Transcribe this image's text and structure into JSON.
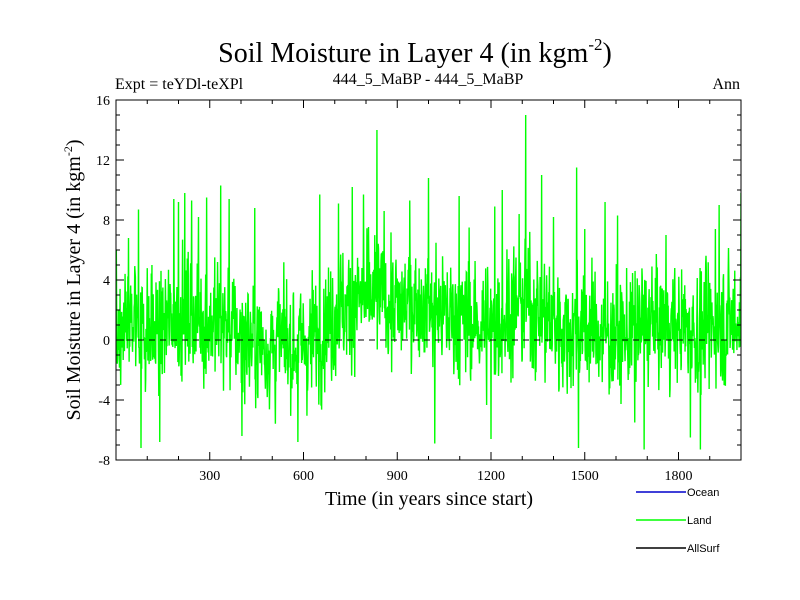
{
  "chart_data": {
    "type": "line",
    "title": "Soil Moisture in Layer 4 (in kgm",
    "title_sup": "-2",
    "title_close": ")",
    "subtitle_left": "Expt = teYDl-teXPl",
    "subtitle_center": "444_5_MaBP - 444_5_MaBP",
    "subtitle_right": "Ann",
    "xlabel": "Time (in years since start)",
    "ylabel": "Soil Moisture in Layer 4 (in kgm",
    "ylabel_sup": "-2",
    "ylabel_close": ")",
    "xlim": [
      0,
      2000
    ],
    "ylim": [
      -8,
      16
    ],
    "x_ticks": [
      300,
      600,
      900,
      1200,
      1500,
      1800
    ],
    "x_tick_labels": [
      "300",
      "600",
      "900",
      "1200",
      "1500",
      "1800"
    ],
    "y_ticks": [
      -8,
      -4,
      0,
      4,
      8,
      12,
      16
    ],
    "y_tick_labels": [
      "-8",
      "-4",
      "0",
      "4",
      "8",
      "12",
      "16"
    ],
    "zero_line": 0,
    "series": [
      {
        "name": "Land",
        "color": "#00ff00",
        "x_start": 1,
        "x_step": 1,
        "n_points": 2000,
        "note": "annual values, approx. range -7.4 to 15",
        "anchors": [
          [
            0,
            0.5
          ],
          [
            60,
            1.5
          ],
          [
            120,
            0.2
          ],
          [
            180,
            1.5
          ],
          [
            240,
            1.8
          ],
          [
            300,
            1.2
          ],
          [
            360,
            0.8
          ],
          [
            420,
            0.2
          ],
          [
            480,
            -0.5
          ],
          [
            540,
            -0.2
          ],
          [
            600,
            -0.5
          ],
          [
            660,
            0.8
          ],
          [
            720,
            2.0
          ],
          [
            780,
            2.6
          ],
          [
            840,
            2.8
          ],
          [
            900,
            2.0
          ],
          [
            960,
            2.6
          ],
          [
            1020,
            2.0
          ],
          [
            1080,
            1.6
          ],
          [
            1140,
            1.2
          ],
          [
            1200,
            0.8
          ],
          [
            1260,
            2.0
          ],
          [
            1320,
            2.4
          ],
          [
            1380,
            1.5
          ],
          [
            1440,
            0.6
          ],
          [
            1500,
            0.8
          ],
          [
            1560,
            0.5
          ],
          [
            1620,
            0.3
          ],
          [
            1680,
            1.0
          ],
          [
            1740,
            1.2
          ],
          [
            1800,
            1.0
          ],
          [
            1860,
            0.5
          ],
          [
            1920,
            1.0
          ],
          [
            2000,
            1.5
          ]
        ],
        "peaks": [
          [
            1,
            6.0
          ],
          [
            40,
            6.8
          ],
          [
            72,
            8.7
          ],
          [
            80,
            -7.2
          ],
          [
            115,
            5.0
          ],
          [
            140,
            -6.8
          ],
          [
            185,
            9.4
          ],
          [
            200,
            9.2
          ],
          [
            220,
            9.8
          ],
          [
            242,
            9.3
          ],
          [
            264,
            8.2
          ],
          [
            290,
            9.5
          ],
          [
            335,
            10.3
          ],
          [
            362,
            9.4
          ],
          [
            403,
            -6.4
          ],
          [
            444,
            8.8
          ],
          [
            521,
            3.2
          ],
          [
            582,
            -6.8
          ],
          [
            652,
            9.7
          ],
          [
            712,
            9.1
          ],
          [
            756,
            10.2
          ],
          [
            792,
            9.7
          ],
          [
            835,
            14.0
          ],
          [
            858,
            8.6
          ],
          [
            940,
            9.3
          ],
          [
            1000,
            10.8
          ],
          [
            1020,
            -6.9
          ],
          [
            1098,
            9.6
          ],
          [
            1130,
            7.5
          ],
          [
            1200,
            -6.6
          ],
          [
            1212,
            8.9
          ],
          [
            1236,
            10.0
          ],
          [
            1290,
            8.4
          ],
          [
            1311,
            15.0
          ],
          [
            1362,
            11.0
          ],
          [
            1400,
            8.2
          ],
          [
            1474,
            11.5
          ],
          [
            1480,
            -7.2
          ],
          [
            1500,
            7.4
          ],
          [
            1565,
            9.2
          ],
          [
            1605,
            8.3
          ],
          [
            1660,
            -5.5
          ],
          [
            1690,
            -7.3
          ],
          [
            1760,
            7.0
          ],
          [
            1838,
            -6.5
          ],
          [
            1870,
            -7.3
          ],
          [
            1918,
            7.4
          ],
          [
            1930,
            9.0
          ],
          [
            2000,
            9.8
          ]
        ]
      },
      {
        "name": "Ocean",
        "color": "#0000cc",
        "values": []
      },
      {
        "name": "AllSurf",
        "color": "#000000",
        "values": []
      }
    ],
    "legend": [
      "Ocean",
      "Land",
      "AllSurf"
    ],
    "legend_position": "bottom-right",
    "grid": false
  }
}
